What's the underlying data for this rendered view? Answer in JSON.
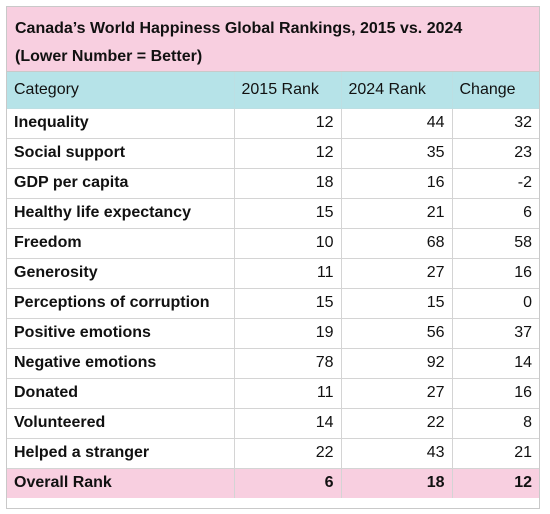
{
  "title": {
    "line1": "Canada’s World Happiness Global Rankings, 2015 vs. 2024",
    "line2": "(Lower Number = Better)"
  },
  "headers": [
    "Category",
    "2015 Rank",
    "2024 Rank",
    "Change"
  ],
  "rows": [
    {
      "category": "Inequality",
      "r2015": "12",
      "r2024": "44",
      "change": "32"
    },
    {
      "category": "Social support",
      "r2015": "12",
      "r2024": "35",
      "change": "23"
    },
    {
      "category": "GDP per capita",
      "r2015": "18",
      "r2024": "16",
      "change": "-2"
    },
    {
      "category": "Healthy life expectancy",
      "r2015": "15",
      "r2024": "21",
      "change": "6"
    },
    {
      "category": "Freedom",
      "r2015": "10",
      "r2024": "68",
      "change": "58"
    },
    {
      "category": "Generosity",
      "r2015": "11",
      "r2024": "27",
      "change": "16"
    },
    {
      "category": "Perceptions of corruption",
      "r2015": "15",
      "r2024": "15",
      "change": "0"
    },
    {
      "category": "Positive emotions",
      "r2015": "19",
      "r2024": "56",
      "change": "37"
    },
    {
      "category": "Negative emotions",
      "r2015": "78",
      "r2024": "92",
      "change": "14"
    },
    {
      "category": "Donated",
      "r2015": "11",
      "r2024": "27",
      "change": "16"
    },
    {
      "category": "Volunteered",
      "r2015": "14",
      "r2024": "22",
      "change": "8"
    },
    {
      "category": "Helped a stranger",
      "r2015": "22",
      "r2024": "43",
      "change": "21"
    },
    {
      "category": "Overall Rank",
      "r2015": "6",
      "r2024": "18",
      "change": "12"
    }
  ],
  "colors": {
    "title_background": "#f8cfe0",
    "header_background": "#b6e3e8",
    "overall_row_background": "#f8cfe0"
  }
}
